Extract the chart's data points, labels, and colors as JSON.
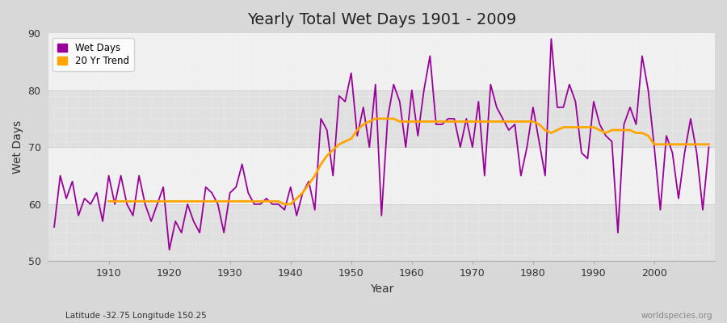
{
  "title": "Yearly Total Wet Days 1901 - 2009",
  "xlabel": "Year",
  "ylabel": "Wet Days",
  "subtitle": "Latitude -32.75 Longitude 150.25",
  "watermark": "worldspecies.org",
  "ylim": [
    50,
    90
  ],
  "yticks": [
    50,
    60,
    70,
    80,
    90
  ],
  "bg_color": "#d8d8d8",
  "plot_bg_color": "#ffffff",
  "band_light": "#f0f0f0",
  "band_dark": "#e0e0e0",
  "wet_days_color": "#990099",
  "trend_color": "#ffa500",
  "years": [
    1901,
    1902,
    1903,
    1904,
    1905,
    1906,
    1907,
    1908,
    1909,
    1910,
    1911,
    1912,
    1913,
    1914,
    1915,
    1916,
    1917,
    1918,
    1919,
    1920,
    1921,
    1922,
    1923,
    1924,
    1925,
    1926,
    1927,
    1928,
    1929,
    1930,
    1931,
    1932,
    1933,
    1934,
    1935,
    1936,
    1937,
    1938,
    1939,
    1940,
    1941,
    1942,
    1943,
    1944,
    1945,
    1946,
    1947,
    1948,
    1949,
    1950,
    1951,
    1952,
    1953,
    1954,
    1955,
    1956,
    1957,
    1958,
    1959,
    1960,
    1961,
    1962,
    1963,
    1964,
    1965,
    1966,
    1967,
    1968,
    1969,
    1970,
    1971,
    1972,
    1973,
    1974,
    1975,
    1976,
    1977,
    1978,
    1979,
    1980,
    1981,
    1982,
    1983,
    1984,
    1985,
    1986,
    1987,
    1988,
    1989,
    1990,
    1991,
    1992,
    1993,
    1994,
    1995,
    1996,
    1997,
    1998,
    1999,
    2000,
    2001,
    2002,
    2003,
    2004,
    2005,
    2006,
    2007,
    2008,
    2009
  ],
  "wet_days": [
    56,
    65,
    61,
    64,
    58,
    61,
    60,
    62,
    57,
    65,
    60,
    65,
    60,
    58,
    65,
    60,
    57,
    60,
    63,
    52,
    57,
    55,
    60,
    57,
    55,
    63,
    62,
    60,
    55,
    62,
    63,
    67,
    62,
    60,
    60,
    61,
    60,
    60,
    59,
    63,
    58,
    62,
    64,
    59,
    75,
    73,
    65,
    79,
    78,
    83,
    72,
    77,
    70,
    81,
    58,
    75,
    81,
    78,
    70,
    80,
    72,
    80,
    86,
    74,
    74,
    75,
    75,
    70,
    75,
    70,
    78,
    65,
    81,
    77,
    75,
    73,
    74,
    65,
    70,
    77,
    71,
    65,
    89,
    77,
    77,
    81,
    78,
    69,
    68,
    78,
    74,
    72,
    71,
    55,
    74,
    77,
    74,
    86,
    80,
    70,
    59,
    72,
    69,
    61,
    69,
    75,
    69,
    59,
    70
  ],
  "trend": [
    null,
    null,
    null,
    null,
    null,
    null,
    null,
    null,
    null,
    60.5,
    60.5,
    60.5,
    60.5,
    60.5,
    60.5,
    60.5,
    60.5,
    60.5,
    60.5,
    60.5,
    60.5,
    60.5,
    60.5,
    60.5,
    60.5,
    60.5,
    60.5,
    60.5,
    60.5,
    60.5,
    60.5,
    60.5,
    60.5,
    60.5,
    60.5,
    60.5,
    60.5,
    60.5,
    60.0,
    60.0,
    61.0,
    62.0,
    63.5,
    65.0,
    67.0,
    68.5,
    69.5,
    70.5,
    71.0,
    71.5,
    73.0,
    74.0,
    74.5,
    75.0,
    75.0,
    75.0,
    75.0,
    74.5,
    74.5,
    74.5,
    74.5,
    74.5,
    74.5,
    74.5,
    74.5,
    74.5,
    74.5,
    74.5,
    74.5,
    74.5,
    74.5,
    74.5,
    74.5,
    74.5,
    74.5,
    74.5,
    74.5,
    74.5,
    74.5,
    74.5,
    74.0,
    73.0,
    72.5,
    73.0,
    73.5,
    73.5,
    73.5,
    73.5,
    73.5,
    73.5,
    73.0,
    72.5,
    73.0,
    73.0,
    73.0,
    73.0,
    72.5,
    72.5,
    72.0,
    70.5,
    70.5,
    70.5,
    70.5,
    70.5,
    70.5,
    70.5,
    70.5,
    70.5,
    70.5
  ]
}
